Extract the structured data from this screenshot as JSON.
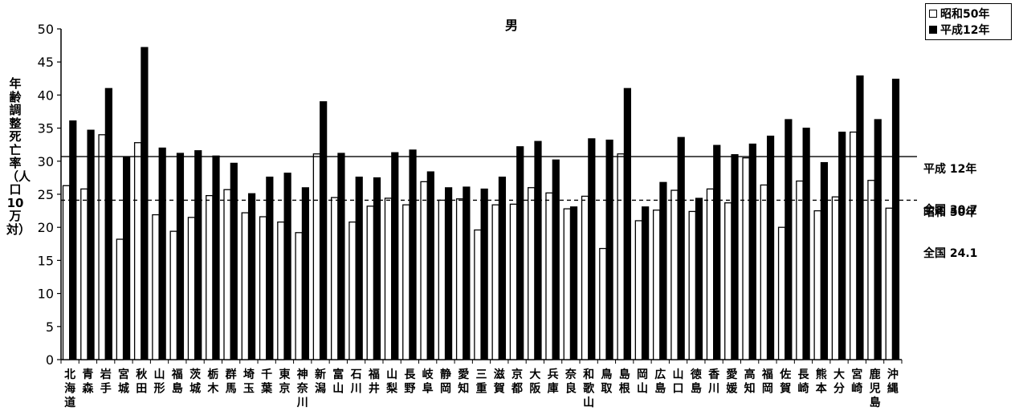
{
  "chart_data": {
    "type": "bar",
    "title": "男",
    "ylabel": "年齢調整死亡率（人口10万対）",
    "ylim": [
      0,
      50
    ],
    "yticks": [
      0,
      5,
      10,
      15,
      20,
      25,
      30,
      35,
      40,
      45,
      50
    ],
    "categories": [
      "北海道",
      "青森",
      "岩手",
      "宮城",
      "秋田",
      "山形",
      "福島",
      "茨城",
      "栃木",
      "群馬",
      "埼玉",
      "千葉",
      "東京",
      "神奈川",
      "新潟",
      "富山",
      "石川",
      "福井",
      "山梨",
      "長野",
      "岐阜",
      "静岡",
      "愛知",
      "三重",
      "滋賀",
      "京都",
      "大阪",
      "兵庫",
      "奈良",
      "和歌山",
      "鳥取",
      "島根",
      "岡山",
      "広島",
      "山口",
      "徳島",
      "香川",
      "愛媛",
      "高知",
      "福岡",
      "佐賀",
      "長崎",
      "熊本",
      "大分",
      "宮崎",
      "鹿児島",
      "沖縄"
    ],
    "series": [
      {
        "name": "昭和50年",
        "color": "#ffffff",
        "values": [
          26.3,
          25.8,
          34.0,
          18.2,
          32.8,
          21.9,
          19.4,
          21.5,
          24.8,
          25.7,
          22.2,
          21.6,
          20.8,
          19.2,
          31.1,
          24.5,
          20.8,
          23.2,
          24.4,
          23.4,
          26.9,
          24.1,
          24.3,
          19.6,
          23.4,
          23.5,
          26.0,
          25.2,
          22.8,
          24.7,
          16.8,
          31.1,
          21.0,
          22.6,
          25.6,
          22.4,
          25.8,
          23.7,
          30.5,
          26.4,
          20.0,
          27.0,
          22.5,
          24.6,
          34.4,
          27.1,
          22.9
        ]
      },
      {
        "name": "平成12年",
        "color": "#000000",
        "values": [
          36.1,
          34.7,
          41.0,
          30.7,
          47.2,
          32.0,
          31.2,
          31.6,
          30.8,
          29.7,
          25.1,
          27.6,
          28.2,
          26.0,
          39.0,
          31.2,
          27.6,
          27.5,
          31.3,
          31.7,
          28.4,
          26.0,
          26.1,
          25.8,
          27.6,
          32.2,
          33.0,
          30.2,
          23.1,
          33.4,
          33.2,
          41.0,
          23.1,
          26.8,
          33.6,
          24.4,
          32.4,
          31.0,
          32.6,
          33.8,
          36.3,
          35.0,
          29.8,
          34.4,
          42.9,
          36.3,
          42.4
        ]
      }
    ],
    "reference_lines": [
      {
        "value": 30.7,
        "style": "solid",
        "label_line1": "平成 12年",
        "label_line2": "全国 30.7"
      },
      {
        "value": 24.1,
        "style": "dashed",
        "label_line1": "昭和 50年",
        "label_line2": "全国 24.1"
      }
    ],
    "grid": false,
    "legend": "top-right"
  }
}
